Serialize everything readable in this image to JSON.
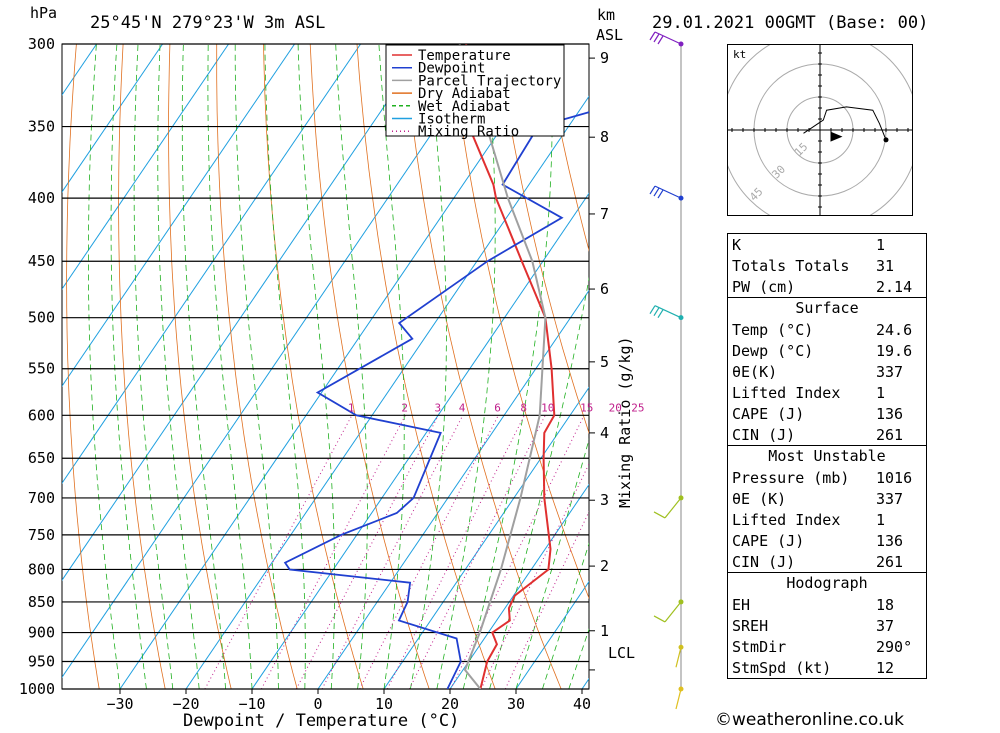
{
  "header": {
    "pressure_unit": "hPa",
    "location": "25°45'N  279°23'W  3m ASL",
    "height_unit_top": "km",
    "height_unit_bottom": "ASL",
    "datetime": "29.01.2021  00GMT  (Base: 00)"
  },
  "hodograph": {
    "unit": "kt",
    "ring_labels": [
      "15",
      "30",
      "45"
    ]
  },
  "indices": {
    "rows": [
      {
        "label": "K",
        "value": "1"
      },
      {
        "label": "Totals Totals",
        "value": "31"
      },
      {
        "label": "PW (cm)",
        "value": "2.14"
      }
    ]
  },
  "surface": {
    "title": "Surface",
    "rows": [
      {
        "label": "Temp (°C)",
        "value": "24.6"
      },
      {
        "label": "Dewp (°C)",
        "value": "19.6"
      },
      {
        "label": "θE(K)",
        "value": "337"
      },
      {
        "label": "Lifted Index",
        "value": "1"
      },
      {
        "label": "CAPE (J)",
        "value": "136"
      },
      {
        "label": "CIN (J)",
        "value": "261"
      }
    ]
  },
  "most_unstable": {
    "title": "Most Unstable",
    "rows": [
      {
        "label": "Pressure (mb)",
        "value": "1016"
      },
      {
        "label": "θE (K)",
        "value": "337"
      },
      {
        "label": "Lifted Index",
        "value": "1"
      },
      {
        "label": "CAPE (J)",
        "value": "136"
      },
      {
        "label": "CIN (J)",
        "value": "261"
      }
    ]
  },
  "hodograph_table": {
    "title": "Hodograph",
    "rows": [
      {
        "label": "EH",
        "value": "18"
      },
      {
        "label": "SREH",
        "value": "37"
      },
      {
        "label": "StmDir",
        "value": "290°"
      },
      {
        "label": "StmSpd (kt)",
        "value": "12"
      }
    ]
  },
  "copyright": "©weatheronline.co.uk",
  "chart_data": {
    "type": "line",
    "xlabel": "Dewpoint / Temperature (°C)",
    "ylabel_right": "Mixing Ratio (g/kg)",
    "x_ticks": [
      "−30",
      "−20",
      "−10",
      "0",
      "10",
      "20",
      "30",
      "40"
    ],
    "x_tick_values": [
      -30,
      -20,
      -10,
      0,
      10,
      20,
      30,
      40
    ],
    "y_ticks": [
      "300",
      "350",
      "400",
      "450",
      "500",
      "550",
      "600",
      "650",
      "700",
      "750",
      "800",
      "850",
      "900",
      "950",
      "1000"
    ],
    "y_tick_values": [
      300,
      350,
      400,
      450,
      500,
      550,
      600,
      650,
      700,
      750,
      800,
      850,
      900,
      950,
      1000
    ],
    "height_ticks": [
      "1",
      "2",
      "3",
      "4",
      "5",
      "6",
      "7",
      "8",
      "9"
    ],
    "height_tick_pressures": [
      897,
      795,
      703,
      620,
      543,
      474,
      412,
      357,
      308
    ],
    "lcl_label": "LCL",
    "lcl_pressure": 965,
    "mixing_ratio_labels": [
      "1",
      "2",
      "3",
      "4",
      "6",
      "8",
      "10",
      "15",
      "20",
      "25"
    ],
    "mixing_ratio_values": [
      1,
      2,
      3,
      4,
      6,
      8,
      10,
      15,
      20,
      25
    ],
    "legend": [
      {
        "name": "Temperature",
        "color": "#e03030",
        "style": "solid"
      },
      {
        "name": "Dewpoint",
        "color": "#2040d0",
        "style": "solid"
      },
      {
        "name": "Parcel Trajectory",
        "color": "#a0a0a0",
        "style": "solid"
      },
      {
        "name": "Dry Adiabat",
        "color": "#e07020",
        "style": "solid"
      },
      {
        "name": "Wet Adiabat",
        "color": "#20b020",
        "style": "dashed"
      },
      {
        "name": "Isotherm",
        "color": "#20a0e0",
        "style": "solid"
      },
      {
        "name": "Mixing Ratio",
        "color": "#c0208c",
        "style": "dotted"
      }
    ],
    "series": [
      {
        "name": "Temperature",
        "p": [
          1000,
          950,
          920,
          900,
          880,
          860,
          840,
          800,
          770,
          700,
          650,
          620,
          600,
          550,
          500,
          450,
          400,
          390,
          355,
          340,
          300
        ],
        "t": [
          24.6,
          22.8,
          22.5,
          20.6,
          22.0,
          20.6,
          20.2,
          22.6,
          20.8,
          14.6,
          10.4,
          7.9,
          7.6,
          2.4,
          -3.8,
          -13.2,
          -23.6,
          -25.4,
          -33.8,
          -37.4,
          -44.0
        ]
      },
      {
        "name": "Dewpoint",
        "p": [
          1000,
          950,
          910,
          880,
          850,
          820,
          800,
          790,
          750,
          720,
          700,
          620,
          600,
          575,
          520,
          505,
          450,
          415,
          390,
          350,
          330,
          300
        ],
        "t": [
          19.6,
          18.8,
          15.8,
          5.2,
          4.6,
          3.0,
          -16.6,
          -18.0,
          -12.4,
          -6.2,
          -5.2,
          -7.8,
          -22.4,
          -30.6,
          -21.8,
          -25.4,
          -18.4,
          -11.6,
          -24.0,
          -24.6,
          -11.0,
          -22.0
        ]
      },
      {
        "name": "Parcel Trajectory",
        "p": [
          1000,
          965,
          900,
          800,
          700,
          600,
          500,
          450,
          400,
          350,
          300
        ],
        "t": [
          24.6,
          20.3,
          18.7,
          15.4,
          11.0,
          5.4,
          -3.8,
          -11.6,
          -21.8,
          -32.4,
          -45.0
        ]
      }
    ],
    "wind_barbs_pressures": [
      300,
      400,
      500,
      700,
      850,
      925,
      1000
    ],
    "hodograph_points_kt": [
      [
        -5,
        -1
      ],
      [
        -2,
        1
      ],
      [
        1,
        3
      ],
      [
        2,
        6
      ],
      [
        8,
        7
      ],
      [
        16,
        6
      ],
      [
        18,
        2
      ],
      [
        20,
        -3
      ]
    ],
    "hodograph_storm_motion_kt": [
      5,
      -2
    ]
  }
}
